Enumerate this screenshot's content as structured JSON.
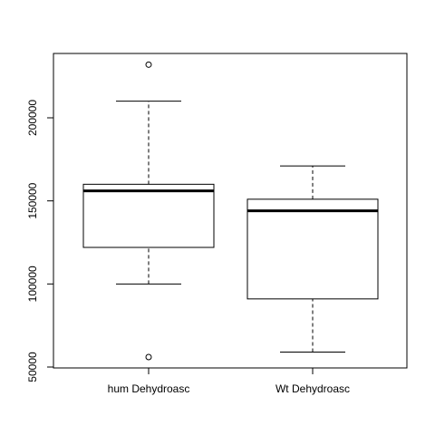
{
  "chart_data": {
    "type": "boxplot",
    "title": "",
    "xlabel": "",
    "ylabel": "",
    "ylim": [
      50000,
      235000
    ],
    "y_ticks": [
      50000,
      100000,
      150000,
      200000
    ],
    "y_tick_labels": [
      "50000",
      "100000",
      "150000",
      "200000"
    ],
    "categories": [
      "hum Dehydroasc",
      "Wt Dehydroasc"
    ],
    "boxes": [
      {
        "name": "hum Dehydroasc",
        "whisker_low": 100000,
        "q1": 122000,
        "median": 156000,
        "q3": 160000,
        "whisker_high": 210000,
        "outliers": [
          232000,
          56000
        ]
      },
      {
        "name": "Wt Dehydroasc",
        "whisker_low": 59000,
        "q1": 91000,
        "median": 144000,
        "q3": 151000,
        "whisker_high": 171000,
        "outliers": []
      }
    ]
  }
}
